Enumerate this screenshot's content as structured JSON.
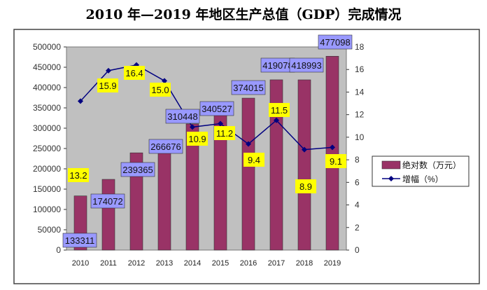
{
  "chart_data": {
    "type": "bar+line",
    "title": "2010 年—2019 年地区生产总值（GDP）完成情况",
    "categories": [
      "2010",
      "2011",
      "2012",
      "2013",
      "2014",
      "2015",
      "2016",
      "2017",
      "2018",
      "2019"
    ],
    "series": [
      {
        "name": "绝对数（万元）",
        "type": "bar",
        "axis": "left",
        "values": [
          133311,
          174072,
          239365,
          266676,
          310448,
          340527,
          374015,
          419078,
          418993,
          477098
        ],
        "color": "#993366"
      },
      {
        "name": "增幅（%）",
        "type": "line",
        "axis": "right",
        "values": [
          13.2,
          15.9,
          16.4,
          15.0,
          10.9,
          11.2,
          9.4,
          11.5,
          8.9,
          9.1
        ],
        "color": "#000080"
      }
    ],
    "left_axis": {
      "range": [
        0,
        500000
      ],
      "ticks": [
        "0",
        "50000",
        "100000",
        "150000",
        "200000",
        "250000",
        "300000",
        "350000",
        "400000",
        "450000",
        "500000"
      ]
    },
    "right_axis": {
      "range": [
        0,
        18
      ],
      "ticks": [
        "0",
        "2",
        "4",
        "6",
        "8",
        "10",
        "12",
        "14",
        "16",
        "18"
      ]
    },
    "plot_background": "#c0c0c0",
    "bar_label_color": "#9999ff",
    "line_label_color": "#ffff00",
    "legend": "right"
  }
}
